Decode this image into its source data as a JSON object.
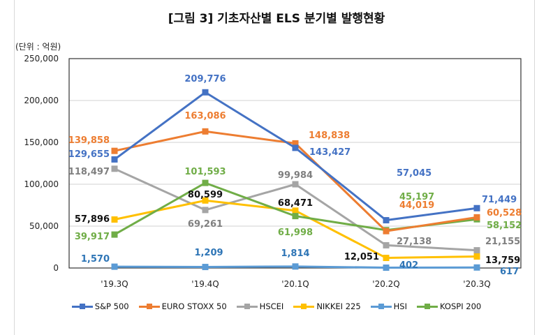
{
  "title": "[그림 3] 기초자산별 ELS 분기별 발행현황",
  "unit_label": "(단위 : 억원)",
  "chart_data": {
    "type": "line",
    "title": "[그림 3] 기초자산별 ELS 분기별 발행현황",
    "categories": [
      "'19.3Q",
      "'19.4Q",
      "'20.1Q",
      "'20.2Q",
      "'20.3Q"
    ],
    "ylim": [
      0,
      250000
    ],
    "yticks": [
      "0",
      "50,000",
      "100,000",
      "150,000",
      "200,000",
      "250,000"
    ],
    "grid": true,
    "legend": "bottom",
    "series": [
      {
        "name": "S&P 500",
        "color": "#4472C4",
        "label_color": "#4472C4",
        "values": [
          129655,
          209776,
          143427,
          57045,
          71449
        ],
        "labels": [
          "129,655",
          "209,776",
          "143,427",
          "57,045",
          "71,449"
        ]
      },
      {
        "name": "EURO STOXX 50",
        "color": "#ED7D31",
        "label_color": "#ED7D31",
        "values": [
          139858,
          163086,
          148838,
          44019,
          60528
        ],
        "labels": [
          "139,858",
          "163,086",
          "148,838",
          "44,019",
          "60,528"
        ]
      },
      {
        "name": "HSCEI",
        "color": "#A5A5A5",
        "label_color": "#7F7F7F",
        "values": [
          118497,
          69261,
          99984,
          27138,
          21155
        ],
        "labels": [
          "118,497",
          "69,261",
          "99,984",
          "27,138",
          "21,155"
        ]
      },
      {
        "name": "NIKKEI 225",
        "color": "#FFC000",
        "label_color": "#111111",
        "values": [
          57896,
          80599,
          68471,
          12051,
          13759
        ],
        "labels": [
          "57,896",
          "80,599",
          "68,471",
          "12,051",
          "13,759"
        ]
      },
      {
        "name": "HSI",
        "color": "#5B9BD5",
        "label_color": "#2E75B6",
        "values": [
          1570,
          1209,
          1814,
          402,
          617
        ],
        "labels": [
          "1,570",
          "1,209",
          "1,814",
          "402",
          "617"
        ]
      },
      {
        "name": "KOSPI 200",
        "color": "#70AD47",
        "label_color": "#70AD47",
        "values": [
          39917,
          101593,
          61998,
          45197,
          58152
        ],
        "labels": [
          "39,917",
          "101,593",
          "61,998",
          "45,197",
          "58,152"
        ]
      }
    ]
  }
}
